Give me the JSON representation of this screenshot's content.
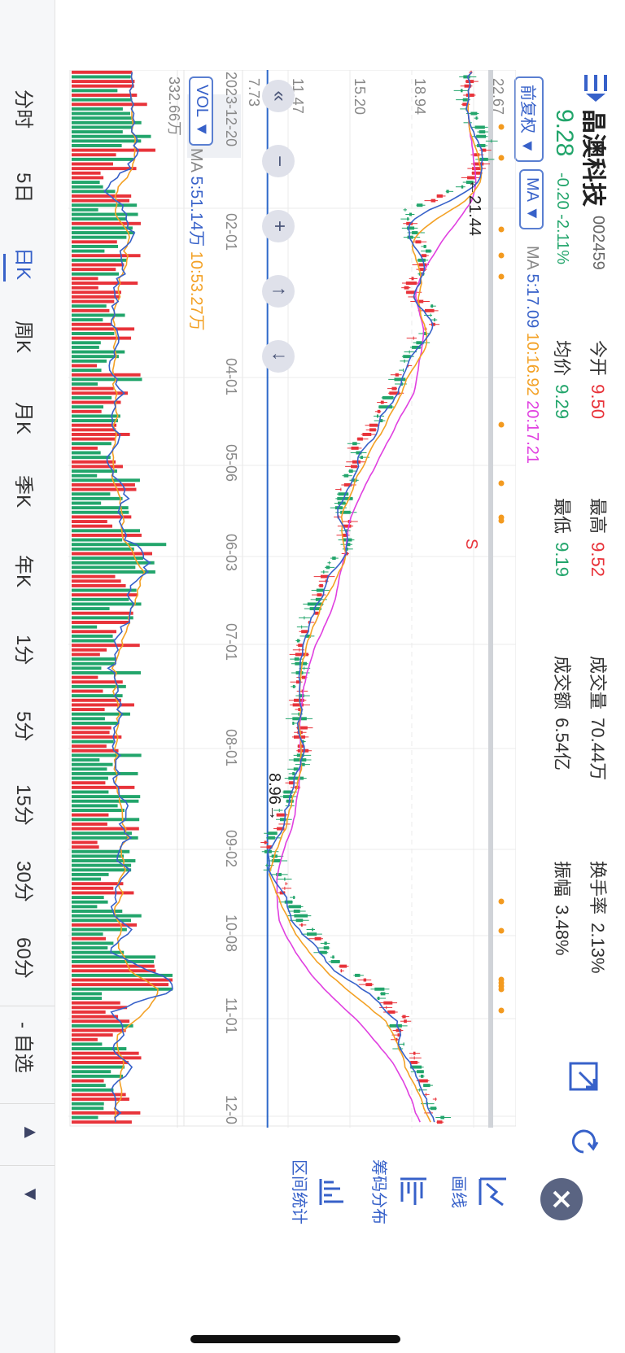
{
  "stock": {
    "name": "晶澳科技",
    "code": "002459",
    "price": "9.28",
    "change": "-0.20",
    "change_pct": "-2.11%"
  },
  "stats": {
    "open_label": "今开",
    "open": "9.50",
    "high_label": "最高",
    "high": "9.52",
    "volume_label": "成交量",
    "volume": "70.44万",
    "turnover_label": "换手率",
    "turnover": "2.13%",
    "avg_label": "均价",
    "avg": "9.29",
    "low_label": "最低",
    "low": "9.19",
    "amount_label": "成交额",
    "amount": "6.54亿",
    "amplitude_label": "振幅",
    "amplitude": "3.48%"
  },
  "toolbar": {
    "adjust_label": "前复权 ▼",
    "ma_label": "MA ▼",
    "ma_legend": {
      "prefix": "MA",
      "ma5": "5:17.09",
      "ma10": "10:16.92",
      "ma20": "20:17.21"
    },
    "vol_label": "VOL ▼",
    "vol_legend": {
      "prefix": "MA",
      "ma5": "5:51.14万",
      "ma10": "10:53.27万"
    }
  },
  "chart": {
    "y_ticks": [
      "22.67",
      "18.94",
      "15.20",
      "11.47",
      "7.73"
    ],
    "vol_max": "332.66万",
    "date_labels": [
      "2023-12-20",
      "02-01",
      "04-01",
      "05-06",
      "06-03",
      "07-01",
      "08-01",
      "09-02",
      "10-08",
      "11-01",
      "12-0"
    ],
    "max_label": "←21.44",
    "min_label": "8.96→",
    "signal_label": "S",
    "current_price_level": 8.96
  },
  "chart_data": {
    "type": "candlestick",
    "y_range": [
      7.73,
      22.67
    ],
    "approx_close": {
      "x": [
        "2023-12-20",
        "02-01",
        "04-01",
        "05-06",
        "06-03",
        "07-01",
        "08-01",
        "09-02",
        "10-08",
        "11-01",
        "12-0"
      ],
      "y": [
        20.5,
        19.8,
        17.2,
        13.8,
        13.0,
        10.8,
        10.9,
        9.0,
        11.6,
        16.5,
        18.5
      ]
    },
    "series": [
      {
        "name": "MA5",
        "color": "#3761c9"
      },
      {
        "name": "MA10",
        "color": "#f3a125"
      },
      {
        "name": "MA20",
        "color": "#e040e0"
      }
    ]
  },
  "tools": {
    "draw": "画线",
    "chip": "筹码分布",
    "range": "区间统计"
  },
  "nav": {
    "first": "«",
    "zoom_out": "−",
    "zoom_in": "+",
    "up": "↑",
    "down": "↓"
  },
  "tabs": [
    "分时",
    "5日",
    "日K",
    "周K",
    "月K",
    "季K",
    "年K",
    "1分",
    "5分",
    "15分",
    "30分",
    "60分"
  ],
  "watch_label": "- 自选",
  "colors": {
    "up": "#e8333a",
    "down": "#22a56b",
    "ma5": "#3761c9",
    "ma10": "#f3a125",
    "ma20": "#e040e0",
    "accent": "#3761c9"
  }
}
